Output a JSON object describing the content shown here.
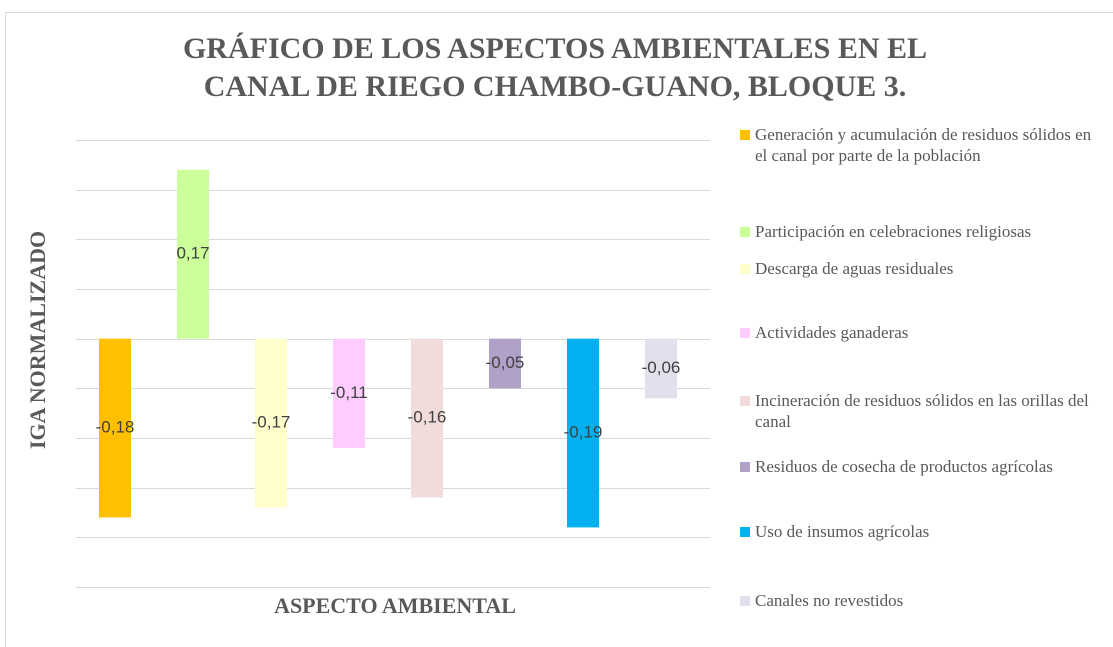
{
  "chart_data": {
    "type": "bar",
    "title": "GRÁFICO DE LOS ASPECTOS AMBIENTALES EN EL CANAL DE RIEGO CHAMBO-GUANO, BLOQUE 3.",
    "x_label": "ASPECTO AMBIENTAL",
    "y_label": "IGA NORMALIZADO",
    "categories": [
      "Generación y acumulación de residuos sólidos en el canal por parte de la población",
      "Participación en celebraciones religiosas",
      "Descarga de aguas residuales",
      "Actividades ganaderas",
      "Incineración de residuos sólidos en las orillas del canal",
      "Residuos de cosecha de productos agrícolas",
      "Uso de insumos agrícolas",
      "Canales no revestidos"
    ],
    "values": [
      -0.18,
      0.17,
      -0.17,
      -0.11,
      -0.16,
      -0.05,
      -0.19,
      -0.06
    ],
    "value_labels": [
      "-0,18",
      "0,17",
      "-0,17",
      "-0,11",
      "-0,16",
      "-0,05",
      "-0,19",
      "-0,06"
    ],
    "colors": [
      "#FFC000",
      "#CCFF99",
      "#FFFFCC",
      "#FFCCFF",
      "#F2DCDB",
      "#B1A0C7",
      "#00B0F0",
      "#E4DFEC"
    ],
    "ylim": [
      -0.25,
      0.2
    ],
    "yticks": [
      -0.25,
      -0.2,
      -0.15,
      -0.1,
      -0.05,
      0,
      0.05,
      0.1,
      0.15,
      0.2
    ],
    "grid": true,
    "legend": "right"
  }
}
